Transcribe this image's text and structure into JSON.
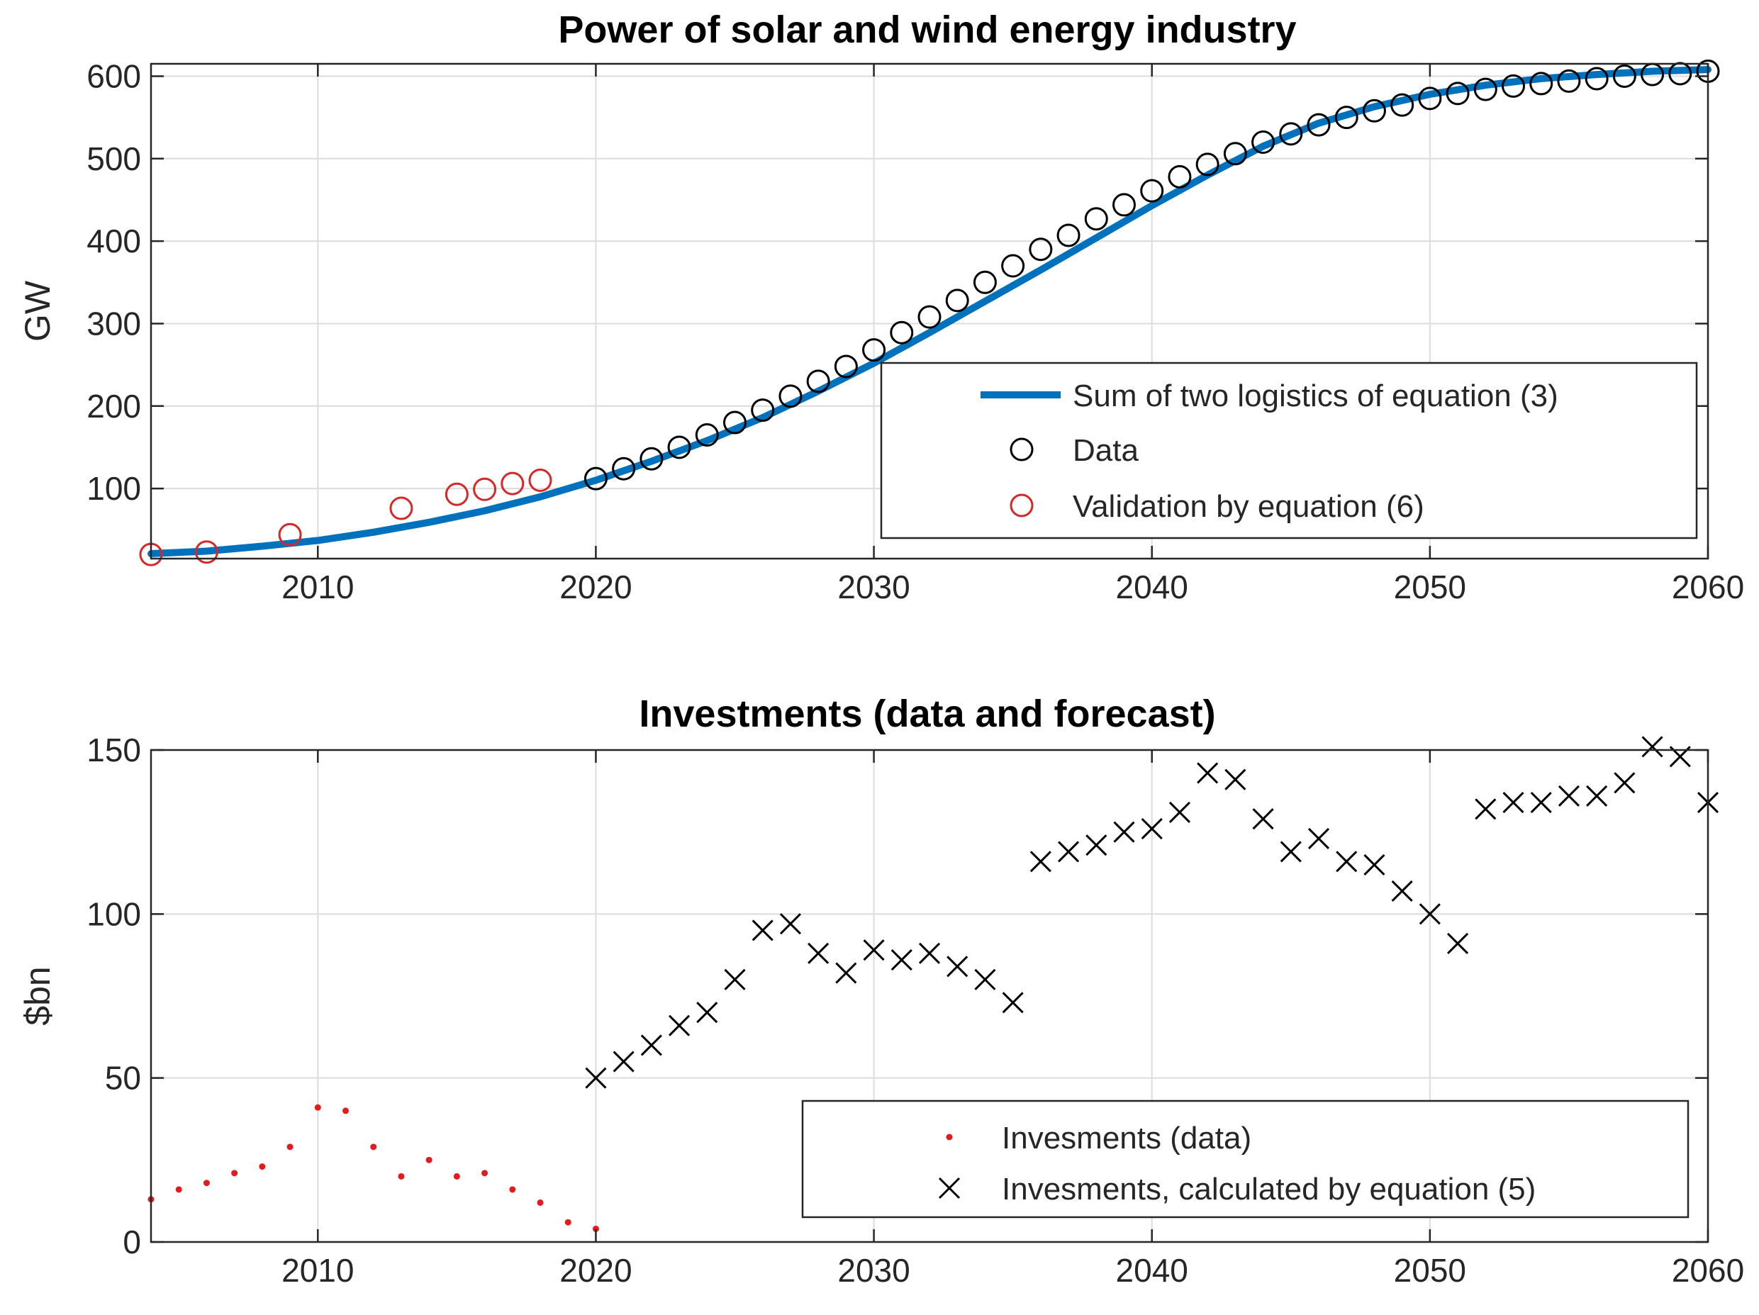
{
  "chart_data": [
    {
      "type": "line",
      "title": "Power of solar and wind energy industry",
      "xlabel": "",
      "ylabel": "GW",
      "xlim": [
        2004,
        2060
      ],
      "ylim": [
        15,
        615
      ],
      "xticks": [
        2010,
        2020,
        2030,
        2040,
        2050,
        2060
      ],
      "yticks": [
        100,
        200,
        300,
        400,
        500,
        600
      ],
      "grid": true,
      "legend_position": "bottom-right",
      "legend": [
        "Sum of two logistics of equation (3)",
        "Data",
        "Validation by equation (6)"
      ],
      "series": [
        {
          "name": "Sum of two logistics of equation (3)",
          "style": "line",
          "color": "#0072BD",
          "x": [
            2004,
            2006,
            2008,
            2010,
            2012,
            2014,
            2016,
            2018,
            2020,
            2022,
            2024,
            2026,
            2028,
            2030,
            2032,
            2034,
            2036,
            2038,
            2040,
            2042,
            2044,
            2046,
            2048,
            2050,
            2052,
            2054,
            2056,
            2058,
            2060
          ],
          "values": [
            21,
            24,
            30,
            37,
            47,
            59,
            73,
            90,
            110,
            133,
            158,
            186,
            218,
            252,
            289,
            327,
            365,
            404,
            443,
            480,
            515,
            543,
            563,
            578,
            589,
            597,
            602,
            606,
            608
          ]
        },
        {
          "name": "Data",
          "style": "marker-o",
          "color": "#000000",
          "x": [
            2020,
            2021,
            2022,
            2023,
            2024,
            2025,
            2026,
            2027,
            2028,
            2029,
            2030,
            2031,
            2032,
            2033,
            2034,
            2035,
            2036,
            2037,
            2038,
            2039,
            2040,
            2041,
            2042,
            2043,
            2044,
            2045,
            2046,
            2047,
            2048,
            2049,
            2050,
            2051,
            2052,
            2053,
            2054,
            2055,
            2056,
            2057,
            2058,
            2059,
            2060
          ],
          "values": [
            112,
            124,
            136,
            150,
            165,
            180,
            195,
            212,
            230,
            248,
            268,
            289,
            308,
            328,
            350,
            370,
            390,
            407,
            427,
            444,
            461,
            478,
            493,
            506,
            520,
            530,
            541,
            550,
            558,
            565,
            573,
            579,
            584,
            588,
            591,
            594,
            597,
            600,
            602,
            603,
            606
          ]
        },
        {
          "name": "Validation by equation (6)",
          "style": "marker-o",
          "color": "#D62728",
          "x": [
            2004,
            2006,
            2009,
            2013,
            2015,
            2016,
            2017,
            2018
          ],
          "values": [
            20,
            23,
            44,
            76,
            93,
            99,
            106,
            110
          ]
        }
      ]
    },
    {
      "type": "scatter",
      "title": "Investments (data and forecast)",
      "xlabel": "",
      "ylabel": "$bn",
      "xlim": [
        2004,
        2060
      ],
      "ylim": [
        0,
        150
      ],
      "xticks": [
        2010,
        2020,
        2030,
        2040,
        2050,
        2060
      ],
      "yticks": [
        0,
        50,
        100,
        150
      ],
      "grid": true,
      "legend_position": "bottom-right",
      "legend": [
        "Invesments (data)",
        "Invesments, calculated by equation (5)"
      ],
      "series": [
        {
          "name": "Invesments (data)",
          "style": "marker-dot",
          "color": "#E41A1C",
          "x": [
            2004,
            2005,
            2006,
            2007,
            2008,
            2009,
            2010,
            2011,
            2012,
            2013,
            2014,
            2015,
            2016,
            2017,
            2018,
            2019,
            2020
          ],
          "values": [
            13,
            16,
            18,
            21,
            23,
            29,
            41,
            40,
            29,
            20,
            25,
            20,
            21,
            16,
            12,
            6,
            4
          ]
        },
        {
          "name": "Invesments, calculated by equation (5)",
          "style": "marker-x",
          "color": "#000000",
          "x": [
            2020,
            2021,
            2022,
            2023,
            2024,
            2025,
            2026,
            2027,
            2028,
            2029,
            2030,
            2031,
            2032,
            2033,
            2034,
            2035,
            2036,
            2037,
            2038,
            2039,
            2040,
            2041,
            2042,
            2043,
            2044,
            2045,
            2046,
            2047,
            2048,
            2049,
            2050,
            2051,
            2052,
            2053,
            2054,
            2055,
            2056,
            2057,
            2058,
            2059,
            2060
          ],
          "values": [
            50,
            55,
            60,
            66,
            70,
            80,
            95,
            97,
            88,
            82,
            89,
            86,
            88,
            84,
            80,
            73,
            116,
            119,
            121,
            125,
            126,
            131,
            143,
            141,
            129,
            119,
            123,
            116,
            115,
            107,
            100,
            91,
            132,
            134,
            134,
            136,
            136,
            140,
            151,
            148,
            134
          ]
        }
      ]
    }
  ]
}
